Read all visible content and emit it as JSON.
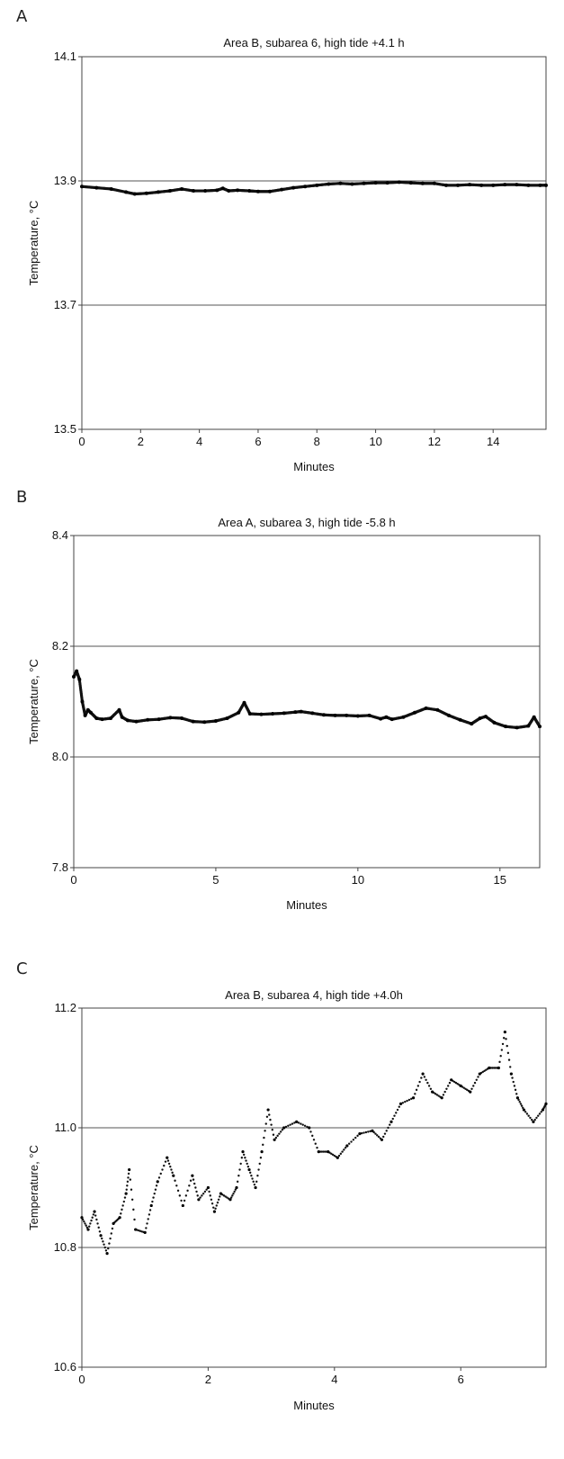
{
  "chart_data": [
    {
      "type": "scatter",
      "panel": "A",
      "title": "Area B, subarea 6, high tide +4.1 h",
      "xlabel": "Minutes",
      "ylabel": "Temperature, °C",
      "xlim": [
        0,
        15.8
      ],
      "ylim": [
        13.5,
        14.1
      ],
      "xticks": [
        "0",
        "2",
        "4",
        "6",
        "8",
        "10",
        "12",
        "14"
      ],
      "xtick_values": [
        0,
        2,
        4,
        6,
        8,
        10,
        12,
        14
      ],
      "yticks": [
        "13.5",
        "13.7",
        "13.9",
        "14.1"
      ],
      "ytick_values": [
        13.5,
        13.7,
        13.9,
        14.1
      ],
      "gridlines_y": [
        13.7,
        13.9
      ],
      "series": [
        {
          "x": [
            0,
            0.5,
            1.0,
            1.5,
            1.8,
            2.2,
            2.6,
            3.0,
            3.4,
            3.8,
            4.2,
            4.6,
            4.8,
            5.0,
            5.3,
            5.7,
            6.0,
            6.4,
            6.8,
            7.2,
            7.6,
            8.0,
            8.4,
            8.8,
            9.2,
            9.6,
            10.0,
            10.4,
            10.8,
            11.2,
            11.6,
            12.0,
            12.4,
            12.8,
            13.2,
            13.6,
            14.0,
            14.4,
            14.8,
            15.2,
            15.6,
            15.8
          ],
          "y": [
            13.891,
            13.889,
            13.887,
            13.882,
            13.879,
            13.88,
            13.882,
            13.884,
            13.887,
            13.884,
            13.884,
            13.885,
            13.888,
            13.884,
            13.885,
            13.884,
            13.883,
            13.883,
            13.886,
            13.889,
            13.891,
            13.893,
            13.895,
            13.896,
            13.895,
            13.896,
            13.897,
            13.897,
            13.898,
            13.897,
            13.896,
            13.896,
            13.893,
            13.893,
            13.894,
            13.893,
            13.893,
            13.894,
            13.894,
            13.893,
            13.893,
            13.893
          ]
        }
      ]
    },
    {
      "type": "scatter",
      "panel": "B",
      "title": "Area A, subarea 3, high tide -5.8 h",
      "xlabel": "Minutes",
      "ylabel": "Temperature, °C",
      "xlim": [
        0,
        16.4
      ],
      "ylim": [
        7.8,
        8.4
      ],
      "xticks": [
        "0",
        "5",
        "10",
        "15"
      ],
      "xtick_values": [
        0,
        5,
        10,
        15
      ],
      "yticks": [
        "7.8",
        "8.0",
        "8.2",
        "8.4"
      ],
      "ytick_values": [
        7.8,
        8.0,
        8.2,
        8.4
      ],
      "gridlines_y": [
        8.0,
        8.2
      ],
      "series": [
        {
          "x": [
            0,
            0.1,
            0.2,
            0.3,
            0.4,
            0.5,
            0.6,
            0.8,
            1.0,
            1.3,
            1.6,
            1.7,
            1.9,
            2.2,
            2.6,
            3.0,
            3.4,
            3.8,
            4.2,
            4.6,
            5.0,
            5.4,
            5.8,
            6.0,
            6.2,
            6.6,
            7.0,
            7.4,
            7.8,
            8.0,
            8.4,
            8.8,
            9.2,
            9.6,
            10.0,
            10.4,
            10.8,
            11.0,
            11.2,
            11.6,
            12.0,
            12.4,
            12.8,
            13.2,
            13.6,
            14.0,
            14.3,
            14.5,
            14.8,
            15.2,
            15.6,
            16.0,
            16.2,
            16.4
          ],
          "y": [
            8.145,
            8.155,
            8.14,
            8.1,
            8.075,
            8.085,
            8.08,
            8.07,
            8.068,
            8.07,
            8.085,
            8.072,
            8.066,
            8.064,
            8.067,
            8.068,
            8.071,
            8.07,
            8.064,
            8.063,
            8.065,
            8.07,
            8.08,
            8.098,
            8.078,
            8.077,
            8.078,
            8.079,
            8.081,
            8.082,
            8.079,
            8.076,
            8.075,
            8.075,
            8.074,
            8.075,
            8.069,
            8.072,
            8.068,
            8.072,
            8.08,
            8.088,
            8.085,
            8.075,
            8.067,
            8.06,
            8.07,
            8.073,
            8.062,
            8.055,
            8.053,
            8.056,
            8.072,
            8.055
          ]
        }
      ]
    },
    {
      "type": "scatter",
      "panel": "C",
      "title": "Area B, subarea 4, high tide +4.0h",
      "xlabel": "Minutes",
      "ylabel": "Temperature, °C",
      "xlim": [
        0,
        7.35
      ],
      "ylim": [
        10.6,
        11.2
      ],
      "xticks": [
        "0",
        "2",
        "4",
        "6"
      ],
      "xtick_values": [
        0,
        2,
        4,
        6
      ],
      "yticks": [
        "10.6",
        "10.8",
        "11.0",
        "11.2"
      ],
      "ytick_values": [
        10.6,
        10.8,
        11.0,
        11.2
      ],
      "gridlines_y": [
        10.8,
        11.0
      ],
      "series": [
        {
          "x": [
            0,
            0.1,
            0.2,
            0.3,
            0.4,
            0.5,
            0.6,
            0.7,
            0.75,
            0.85,
            1.0,
            1.1,
            1.2,
            1.35,
            1.45,
            1.6,
            1.75,
            1.85,
            2.0,
            2.1,
            2.2,
            2.35,
            2.45,
            2.55,
            2.65,
            2.75,
            2.85,
            2.95,
            3.05,
            3.2,
            3.4,
            3.6,
            3.75,
            3.9,
            4.05,
            4.2,
            4.4,
            4.6,
            4.75,
            4.9,
            5.05,
            5.25,
            5.4,
            5.55,
            5.7,
            5.85,
            6.0,
            6.15,
            6.3,
            6.45,
            6.6,
            6.7,
            6.8,
            6.9,
            7.0,
            7.15,
            7.3,
            7.35
          ],
          "y": [
            10.85,
            10.83,
            10.86,
            10.82,
            10.79,
            10.84,
            10.85,
            10.89,
            10.93,
            10.83,
            10.825,
            10.87,
            10.91,
            10.95,
            10.92,
            10.87,
            10.92,
            10.88,
            10.9,
            10.86,
            10.89,
            10.88,
            10.9,
            10.96,
            10.93,
            10.9,
            10.96,
            11.03,
            10.98,
            11.0,
            11.01,
            11.0,
            10.96,
            10.96,
            10.95,
            10.97,
            10.99,
            10.995,
            10.98,
            11.01,
            11.04,
            11.05,
            11.09,
            11.06,
            11.05,
            11.08,
            11.07,
            11.06,
            11.09,
            11.1,
            11.1,
            11.16,
            11.09,
            11.05,
            11.03,
            11.01,
            11.03,
            11.04
          ]
        }
      ]
    }
  ]
}
